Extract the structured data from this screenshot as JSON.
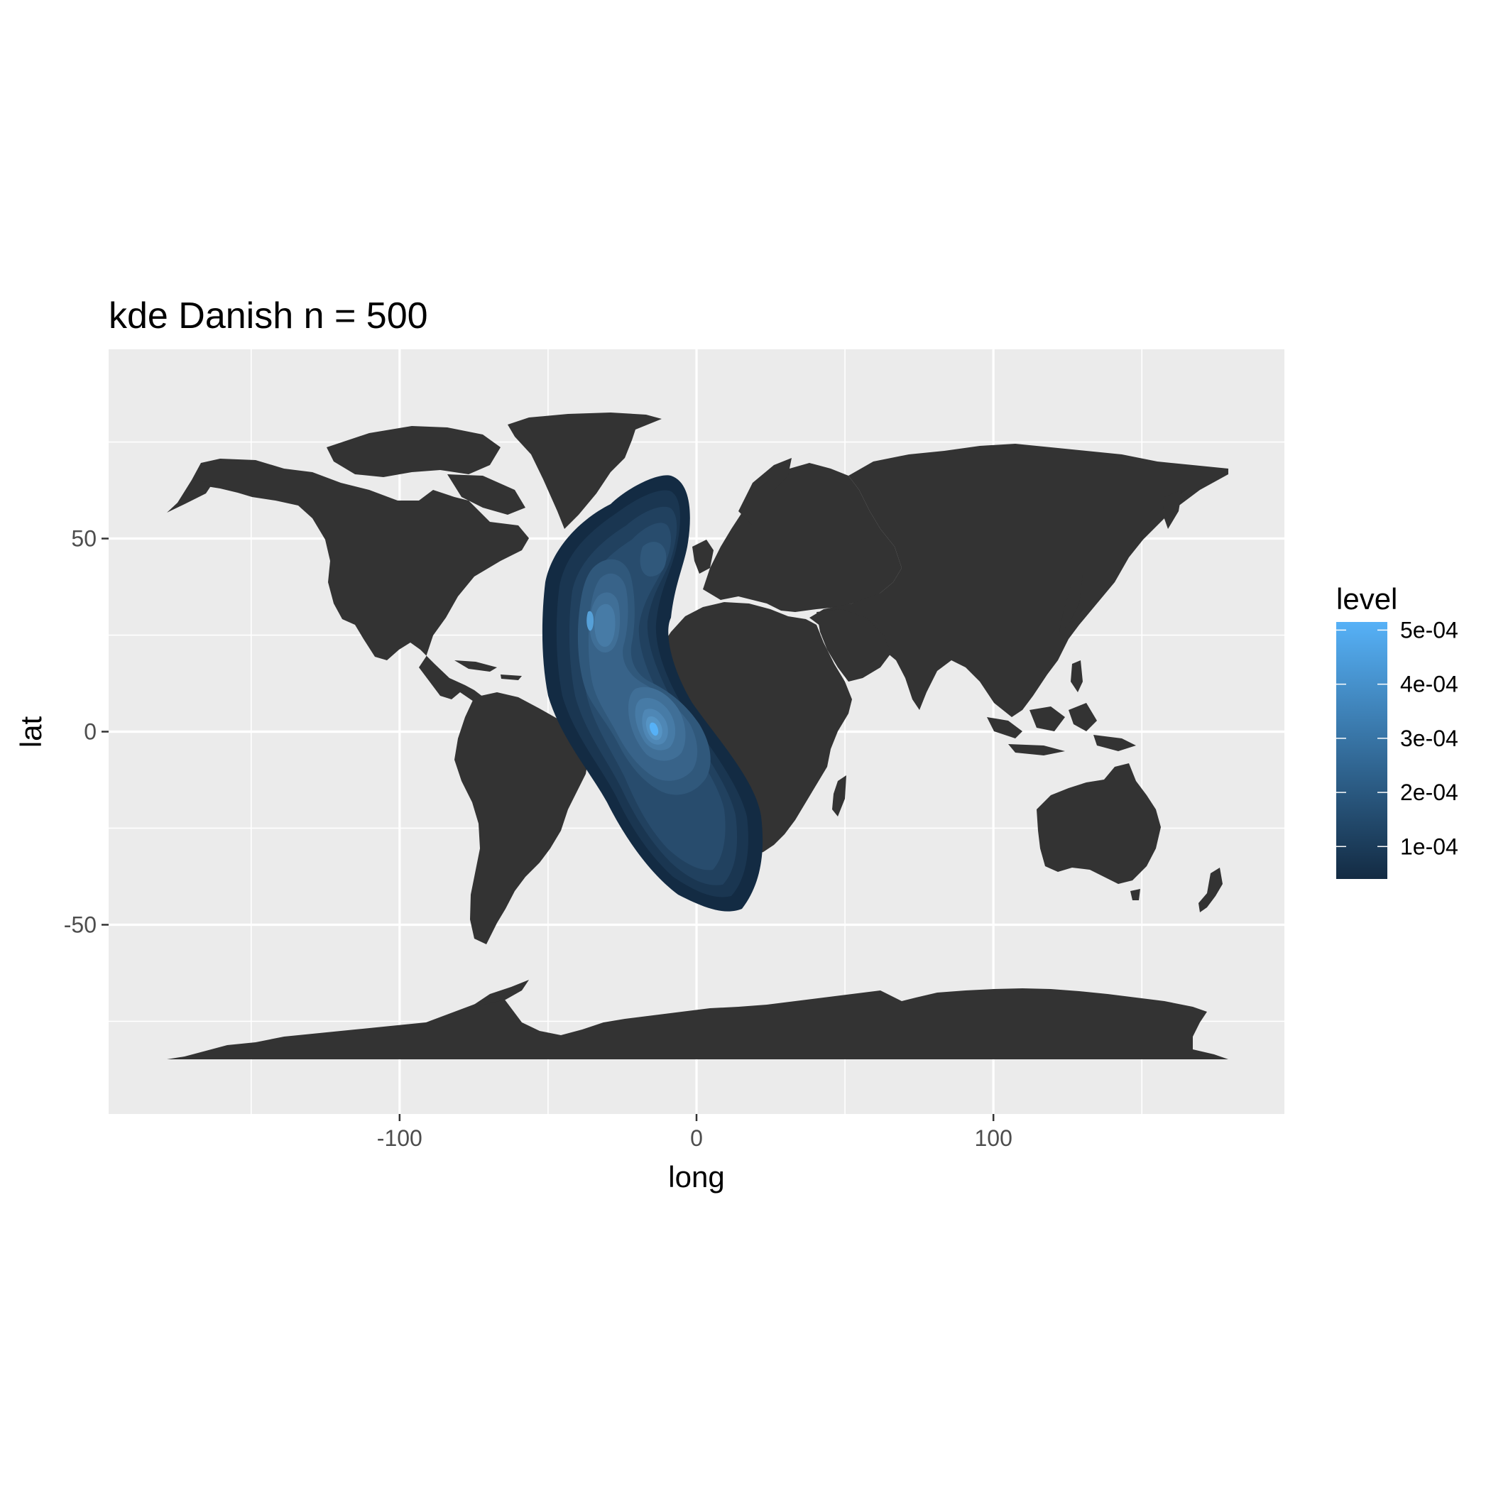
{
  "chart_data": {
    "type": "map-density",
    "title": "kde  Danish n = 500",
    "xlabel": "long",
    "ylabel": "lat",
    "xlim": [
      -198,
      198
    ],
    "ylim": [
      -99,
      99
    ],
    "x_ticks": [
      {
        "value": -100,
        "label": "-100"
      },
      {
        "value": 0,
        "label": "0"
      },
      {
        "value": 100,
        "label": "100"
      }
    ],
    "y_ticks": [
      {
        "value": 50,
        "label": "50"
      },
      {
        "value": 0,
        "label": "0"
      },
      {
        "value": -50,
        "label": "-50"
      }
    ],
    "x_minor": [
      -150,
      -50,
      50,
      150
    ],
    "y_minor": [
      75,
      25,
      -25,
      -75
    ],
    "grid": true,
    "colors": {
      "panel": "#ebebeb",
      "grid": "#ffffff",
      "land": "#333333",
      "density_low": "#132b43",
      "density_high": "#56b1f7"
    },
    "legend": {
      "title": "level",
      "placement": "right",
      "range": [
        4e-05,
        0.000515
      ],
      "breaks": [
        {
          "value": 0.0005,
          "label": "5e-04"
        },
        {
          "value": 0.0004,
          "label": "4e-04"
        },
        {
          "value": 0.0003,
          "label": "3e-04"
        },
        {
          "value": 0.0002,
          "label": "2e-04"
        },
        {
          "value": 0.0001,
          "label": "1e-04"
        }
      ]
    },
    "density_peaks": [
      {
        "long": -18,
        "lat": 1,
        "level": 0.0005
      },
      {
        "long": -36,
        "lat": 29,
        "level": 0.00042
      },
      {
        "long": -17,
        "lat": 46,
        "level": 0.00025
      }
    ]
  }
}
